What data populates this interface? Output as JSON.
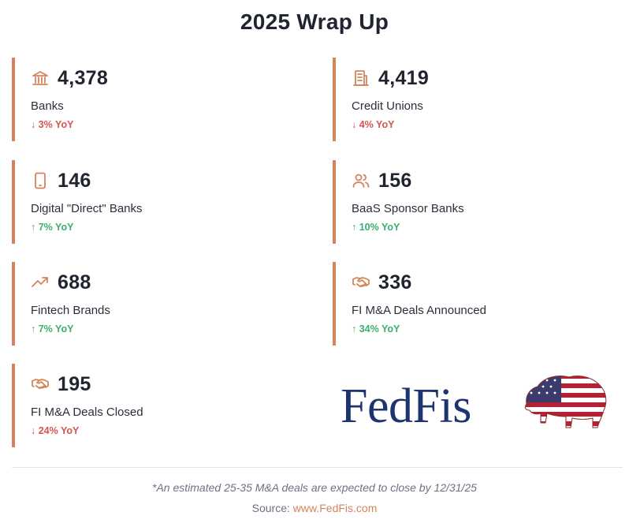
{
  "title": "2025 Wrap Up",
  "accent_color": "#d4845a",
  "cards": [
    {
      "icon": "bank-icon",
      "value": "4,378",
      "label": "Banks",
      "change": "↓ 3% YoY",
      "direction": "down"
    },
    {
      "icon": "building-icon",
      "value": "4,419",
      "label": "Credit Unions",
      "change": "↓ 4% YoY",
      "direction": "down"
    },
    {
      "icon": "smartphone-icon",
      "value": "146",
      "label": "Digital \"Direct\" Banks",
      "change": "↑ 7% YoY",
      "direction": "up"
    },
    {
      "icon": "users-icon",
      "value": "156",
      "label": "BaaS Sponsor Banks",
      "change": "↑ 10% YoY",
      "direction": "up"
    },
    {
      "icon": "trending-up-icon",
      "value": "688",
      "label": "Fintech Brands",
      "change": "↑ 7% YoY",
      "direction": "up"
    },
    {
      "icon": "handshake-icon",
      "value": "336",
      "label": "FI M&A Deals Announced",
      "change": "↑ 34% YoY",
      "direction": "up"
    },
    {
      "icon": "handshake-icon",
      "value": "195",
      "label": "FI M&A Deals Closed",
      "change": "↓ 24% YoY",
      "direction": "down"
    }
  ],
  "logo": {
    "text": "FedFis",
    "icon": "american-flag-bison-icon"
  },
  "footnote": "*An estimated 25-35 M&A deals are expected to close by 12/31/25",
  "source": {
    "prefix": "Source: ",
    "link_text": "www.FedFis.com"
  }
}
